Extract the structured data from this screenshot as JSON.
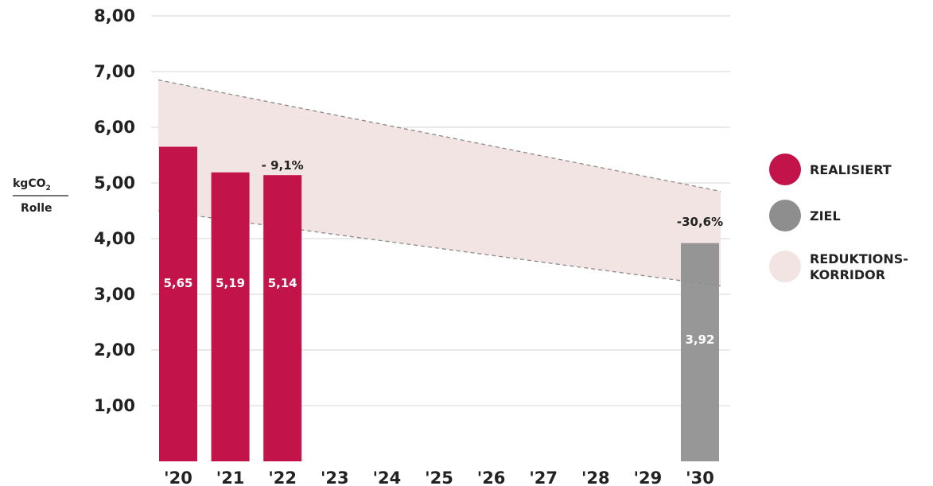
{
  "chart_data": {
    "type": "bar",
    "categories": [
      "'20",
      "'21",
      "'22",
      "'23",
      "'24",
      "'25",
      "'26",
      "'27",
      "'28",
      "'29",
      "'30"
    ],
    "series": [
      {
        "name": "REALISIERT",
        "color": "#c2134b",
        "values": [
          5.65,
          5.19,
          5.14,
          null,
          null,
          null,
          null,
          null,
          null,
          null,
          null
        ],
        "labels": [
          "5,65",
          "5,19",
          "5,14"
        ]
      },
      {
        "name": "ZIEL",
        "color": "#8e8e8e",
        "values": [
          null,
          null,
          null,
          null,
          null,
          null,
          null,
          null,
          null,
          null,
          3.92
        ],
        "labels": [
          "3,92"
        ]
      }
    ],
    "corridor": {
      "name": "REDUKTIONS-KORRIDOR",
      "color": "#f3e4e4",
      "upper": {
        "start": 6.85,
        "end": 4.85
      },
      "lower": {
        "start": 4.5,
        "end": 3.15
      }
    },
    "annotations": [
      {
        "text": "- 9,1%",
        "category": "'22"
      },
      {
        "text": "-30,6%",
        "category": "'30"
      }
    ],
    "ylabel_top": "kgCO",
    "ylabel_sub": "2",
    "ylabel_bottom": "Rolle",
    "ylim": [
      0,
      8
    ],
    "yticks": [
      "1,00",
      "2,00",
      "3,00",
      "4,00",
      "5,00",
      "6,00",
      "7,00",
      "8,00"
    ],
    "grid": true,
    "legend": [
      {
        "label": "REALISIERT",
        "color": "#c2134b"
      },
      {
        "label": "ZIEL",
        "color": "#8e8e8e"
      },
      {
        "label": "REDUKTIONS-",
        "label2": "KORRIDOR",
        "color": "#f3e4e4"
      }
    ],
    "legend_position": "right"
  }
}
